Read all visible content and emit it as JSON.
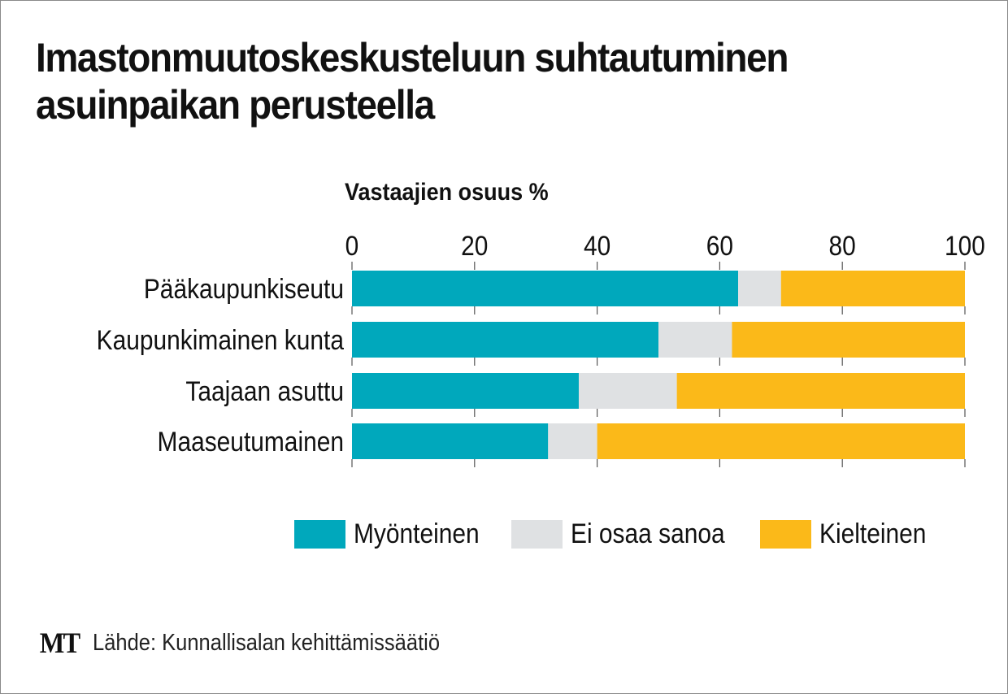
{
  "chart_data": {
    "type": "bar",
    "orientation": "horizontal",
    "stacked": true,
    "title": "Imastonmuutoskeskusteluun suhtautuminen asuinpaikan perusteella",
    "xlabel": "Vastaajien osuus %",
    "ylabel": "",
    "xlim": [
      0,
      100
    ],
    "xticks": [
      "0",
      "20",
      "40",
      "60",
      "80",
      "100"
    ],
    "tick_values": [
      0,
      20,
      40,
      60,
      80,
      100
    ],
    "categories": [
      "Pääkaupunkiseutu",
      "Kaupunkimainen kunta",
      "Taajaan asuttu",
      "Maaseutumainen"
    ],
    "series": [
      {
        "name": "Myönteinen",
        "color": "#00a8bc",
        "values": [
          63,
          50,
          37,
          32
        ]
      },
      {
        "name": "Ei osaa sanoa",
        "color": "#dfe1e3",
        "values": [
          7,
          12,
          16,
          8
        ]
      },
      {
        "name": "Kielteinen",
        "color": "#fbb919",
        "values": [
          30,
          38,
          47,
          60
        ]
      }
    ],
    "legend_position": "bottom-right",
    "grid": false
  },
  "footer": {
    "logo": "MT",
    "source": "Lähde: Kunnallisalan kehittämissäätiö"
  }
}
